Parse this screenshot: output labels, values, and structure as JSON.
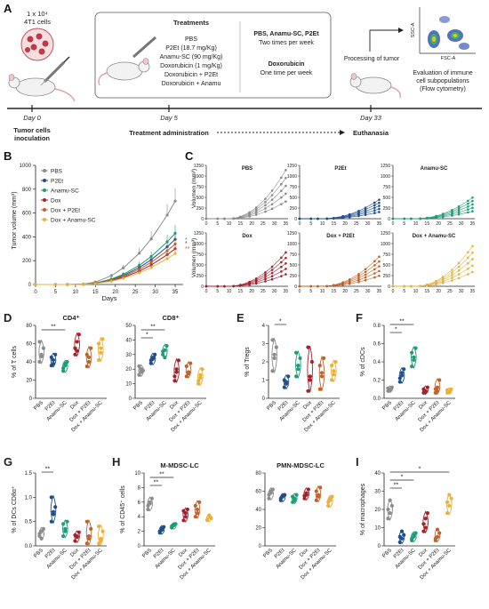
{
  "panelA": {
    "letter": "A",
    "cells_line1": "1 x 10⁴",
    "cells_line2": "4T1 cells",
    "treatments_title": "Treatments",
    "treatments": [
      "PBS",
      "P2Et (18.7 mg/Kg)",
      "Anamu-SC (90 mg/Kg)",
      "Doxorubicin (1 mg/Kg)",
      "Doxorubicin + P2Et",
      "Doxorubicin + Anamu"
    ],
    "schedule1_title": "PBS, Anamu-SC, P2Et",
    "schedule1_sub": "Two times per week",
    "schedule2_title": "Doxorubicin",
    "schedule2_sub": "One time per week",
    "processing": "Processing of tumor",
    "evaluation": [
      "Evaluation of immune",
      "cell subpopulations",
      "(Flow cytometry)"
    ],
    "ssc": "SSC-A",
    "fsc": "FSC-A",
    "days": [
      "Day 0",
      "Day 5",
      "Day 33"
    ],
    "events": [
      "Tumor cells",
      "inoculation",
      "Treatment administration",
      "Euthanasia"
    ]
  },
  "panelB": {
    "letter": "B",
    "legend": [
      "PBS",
      "P2Et",
      "Anamu-SC",
      "Dox",
      "Dox + P2Et",
      "Dox + Anamu-SC"
    ],
    "ylabel": "Tumor volume (mm³)",
    "xlabel": "Days",
    "yticks": [
      "0",
      "200",
      "400",
      "600",
      "800",
      "1000"
    ],
    "xticks": [
      "0",
      "5",
      "10",
      "15",
      "20",
      "25",
      "30",
      "35"
    ]
  },
  "panelC": {
    "letter": "C",
    "ylabel": "Volumen (mm³)",
    "titles": [
      "PBS",
      "P2Et",
      "Anamu-SC",
      "Dox",
      "Dox + P2Et",
      "Dox + Anamu-SC"
    ],
    "yticks": [
      "0",
      "250",
      "500",
      "750",
      "1000",
      "1250"
    ],
    "xticks": [
      "0",
      "5",
      "10",
      "15",
      "20",
      "25",
      "30",
      "35"
    ]
  },
  "groups": [
    "PBS",
    "P2Et",
    "Anamu-SC",
    "Dox",
    "Dox + P2Et",
    "Dox + Anamu-SC"
  ],
  "colors": {
    "PBS": "#8c8c8c",
    "P2Et": "#1f4e8c",
    "Anamu-SC": "#1e9c78",
    "Dox": "#a81f2c",
    "Dox + P2Et": "#c0622a",
    "Dox + Anamu-SC": "#e8b23a"
  },
  "violins": [
    {
      "letter": "D",
      "title": "CD4⁺",
      "ylabel": "% of T cells",
      "yticks": [
        "0",
        "20",
        "40",
        "60",
        "80"
      ],
      "ymax": 80,
      "sig": [
        {
          "a": 0,
          "b": 2,
          "t": "**"
        }
      ],
      "values": [
        [
          40,
          48,
          55,
          62,
          46
        ],
        [
          36,
          42,
          48,
          45,
          38
        ],
        [
          30,
          36,
          40,
          33,
          38
        ],
        [
          55,
          62,
          70,
          48,
          52
        ],
        [
          35,
          45,
          55,
          48,
          40
        ],
        [
          42,
          55,
          65,
          60,
          50
        ]
      ]
    },
    {
      "letter": "",
      "title": "CD8⁺",
      "ylabel": "",
      "yticks": [
        "0",
        "10",
        "20",
        "30",
        "40",
        "50"
      ],
      "ymax": 50,
      "sig": [
        {
          "a": 0,
          "b": 2,
          "t": "**"
        },
        {
          "a": 0,
          "b": 1,
          "t": "*"
        }
      ],
      "values": [
        [
          16,
          20,
          19,
          22,
          18
        ],
        [
          24,
          28,
          30,
          26,
          27
        ],
        [
          30,
          33,
          36,
          32,
          28
        ],
        [
          12,
          20,
          26,
          15,
          18
        ],
        [
          15,
          18,
          24,
          22,
          17
        ],
        [
          10,
          14,
          20,
          12,
          16
        ]
      ]
    },
    {
      "letter": "E",
      "title": "",
      "ylabel": "% of Tregs",
      "yticks": [
        "0",
        "1",
        "2",
        "3",
        "4"
      ],
      "ymax": 4,
      "sig": [
        {
          "a": 0,
          "b": 1,
          "t": "*"
        }
      ],
      "values": [
        [
          1.5,
          2.2,
          2.8,
          3.2,
          2.4
        ],
        [
          0.6,
          0.9,
          1.2,
          1.0,
          0.8
        ],
        [
          1.2,
          1.8,
          2.2,
          2.5,
          1.6
        ],
        [
          0.4,
          1.2,
          2.0,
          2.8,
          1.0
        ],
        [
          0.5,
          1.4,
          2.2,
          1.8,
          1.2
        ],
        [
          1.0,
          1.5,
          2.0,
          1.8,
          1.3
        ]
      ]
    },
    {
      "letter": "F",
      "title": "",
      "ylabel": "% of cDCs",
      "yticks": [
        "0.0",
        "0.2",
        "0.4",
        "0.6",
        "0.8"
      ],
      "ymax": 0.8,
      "sig": [
        {
          "a": 0,
          "b": 2,
          "t": "**"
        },
        {
          "a": 0,
          "b": 1,
          "t": "*"
        }
      ],
      "values": [
        [
          0.08,
          0.1,
          0.12,
          0.11,
          0.09
        ],
        [
          0.18,
          0.25,
          0.32,
          0.22,
          0.28
        ],
        [
          0.35,
          0.45,
          0.55,
          0.5,
          0.42
        ],
        [
          0.06,
          0.08,
          0.12,
          0.1,
          0.07
        ],
        [
          0.06,
          0.12,
          0.2,
          0.1,
          0.08
        ],
        [
          0.06,
          0.08,
          0.1,
          0.09,
          0.07
        ]
      ]
    },
    {
      "letter": "G",
      "title": "",
      "ylabel": "% of DCs CD8α⁺",
      "yticks": [
        "0.0",
        "0.5",
        "1.0",
        "1.5"
      ],
      "ymax": 1.5,
      "sig": [
        {
          "a": 0,
          "b": 1,
          "t": "**"
        }
      ],
      "values": [
        [
          0.2,
          0.3,
          0.35,
          0.25,
          0.15
        ],
        [
          0.5,
          0.7,
          0.8,
          1.0,
          0.65
        ],
        [
          0.2,
          0.35,
          0.5,
          0.45,
          0.3
        ],
        [
          0.1,
          0.2,
          0.28,
          0.22,
          0.18
        ],
        [
          0.05,
          0.2,
          0.35,
          0.5,
          0.15
        ],
        [
          0.05,
          0.15,
          0.3,
          0.4,
          0.1
        ]
      ]
    },
    {
      "letter": "H",
      "title": "M-MDSC-LC",
      "ylabel": "% of CD45⁺ cells",
      "yticks": [
        "0",
        "2",
        "4",
        "6",
        "8",
        "10"
      ],
      "ymax": 10,
      "sig": [
        {
          "a": 0,
          "b": 2,
          "t": "**"
        },
        {
          "a": 0,
          "b": 1,
          "t": "**"
        }
      ],
      "values": [
        [
          5.0,
          5.8,
          6.5,
          5.5,
          6.0
        ],
        [
          1.8,
          2.2,
          2.6,
          2.0,
          2.4
        ],
        [
          2.5,
          2.8,
          3.0,
          2.7,
          2.9
        ],
        [
          3.5,
          4.5,
          5.0,
          4.8,
          4.0
        ],
        [
          4.0,
          5.0,
          6.0,
          5.5,
          4.5
        ],
        [
          3.5,
          4.0,
          3.8,
          3.6,
          4.2
        ]
      ]
    },
    {
      "letter": "",
      "title": "PMN-MDSC-LC",
      "ylabel": "",
      "yticks": [
        "0",
        "20",
        "40",
        "60",
        "80"
      ],
      "ymax": 80,
      "sig": [],
      "values": [
        [
          52,
          58,
          62,
          56,
          60
        ],
        [
          50,
          54,
          56,
          52,
          55
        ],
        [
          48,
          52,
          56,
          54,
          50
        ],
        [
          52,
          58,
          62,
          55,
          56
        ],
        [
          50,
          56,
          64,
          60,
          54
        ],
        [
          44,
          50,
          54,
          48,
          52
        ]
      ]
    },
    {
      "letter": "I",
      "title": "",
      "ylabel": "% of macrophages",
      "yticks": [
        "0",
        "10",
        "20",
        "30",
        "40"
      ],
      "ymax": 40,
      "sig": [
        {
          "a": 0,
          "b": 5,
          "t": "*"
        },
        {
          "a": 0,
          "b": 2,
          "t": "*"
        },
        {
          "a": 0,
          "b": 1,
          "t": "**"
        }
      ],
      "values": [
        [
          15,
          18,
          22,
          20,
          25
        ],
        [
          2,
          4,
          6,
          5,
          8
        ],
        [
          3,
          5,
          7,
          4,
          6
        ],
        [
          12,
          15,
          18,
          8,
          10
        ],
        [
          3,
          5,
          7,
          4,
          9
        ],
        [
          18,
          22,
          26,
          24,
          28
        ]
      ]
    }
  ]
}
